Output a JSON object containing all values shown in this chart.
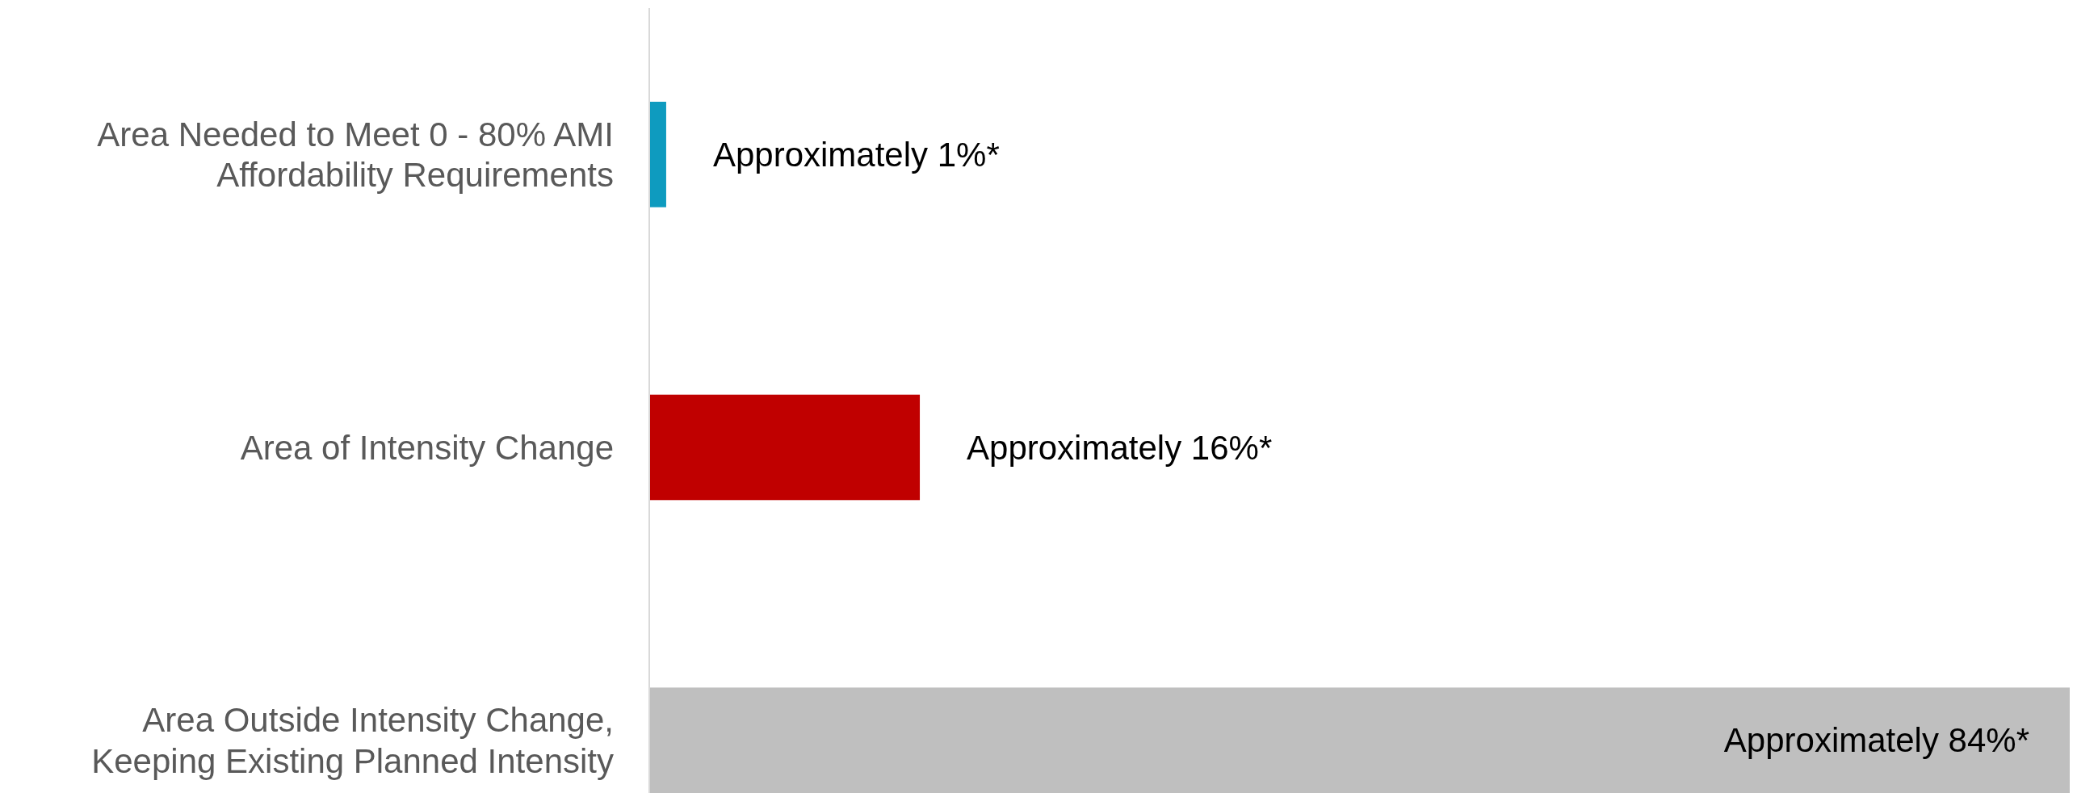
{
  "chart_data": {
    "type": "bar",
    "orientation": "horizontal",
    "categories": [
      "Area Needed to Meet 0 - 80% AMI Affordability Requirements",
      "Area of Intensity Change",
      "Area Outside Intensity Change, Keeping Existing Planned Intensity"
    ],
    "values": [
      1,
      16,
      84
    ],
    "colors": [
      "#0e9bbf",
      "#c00000",
      "#bfbfbf"
    ],
    "value_labels": [
      "Approximately 1%*",
      "Approximately 16%*",
      "Approximately 84%*"
    ],
    "grid": false
  }
}
